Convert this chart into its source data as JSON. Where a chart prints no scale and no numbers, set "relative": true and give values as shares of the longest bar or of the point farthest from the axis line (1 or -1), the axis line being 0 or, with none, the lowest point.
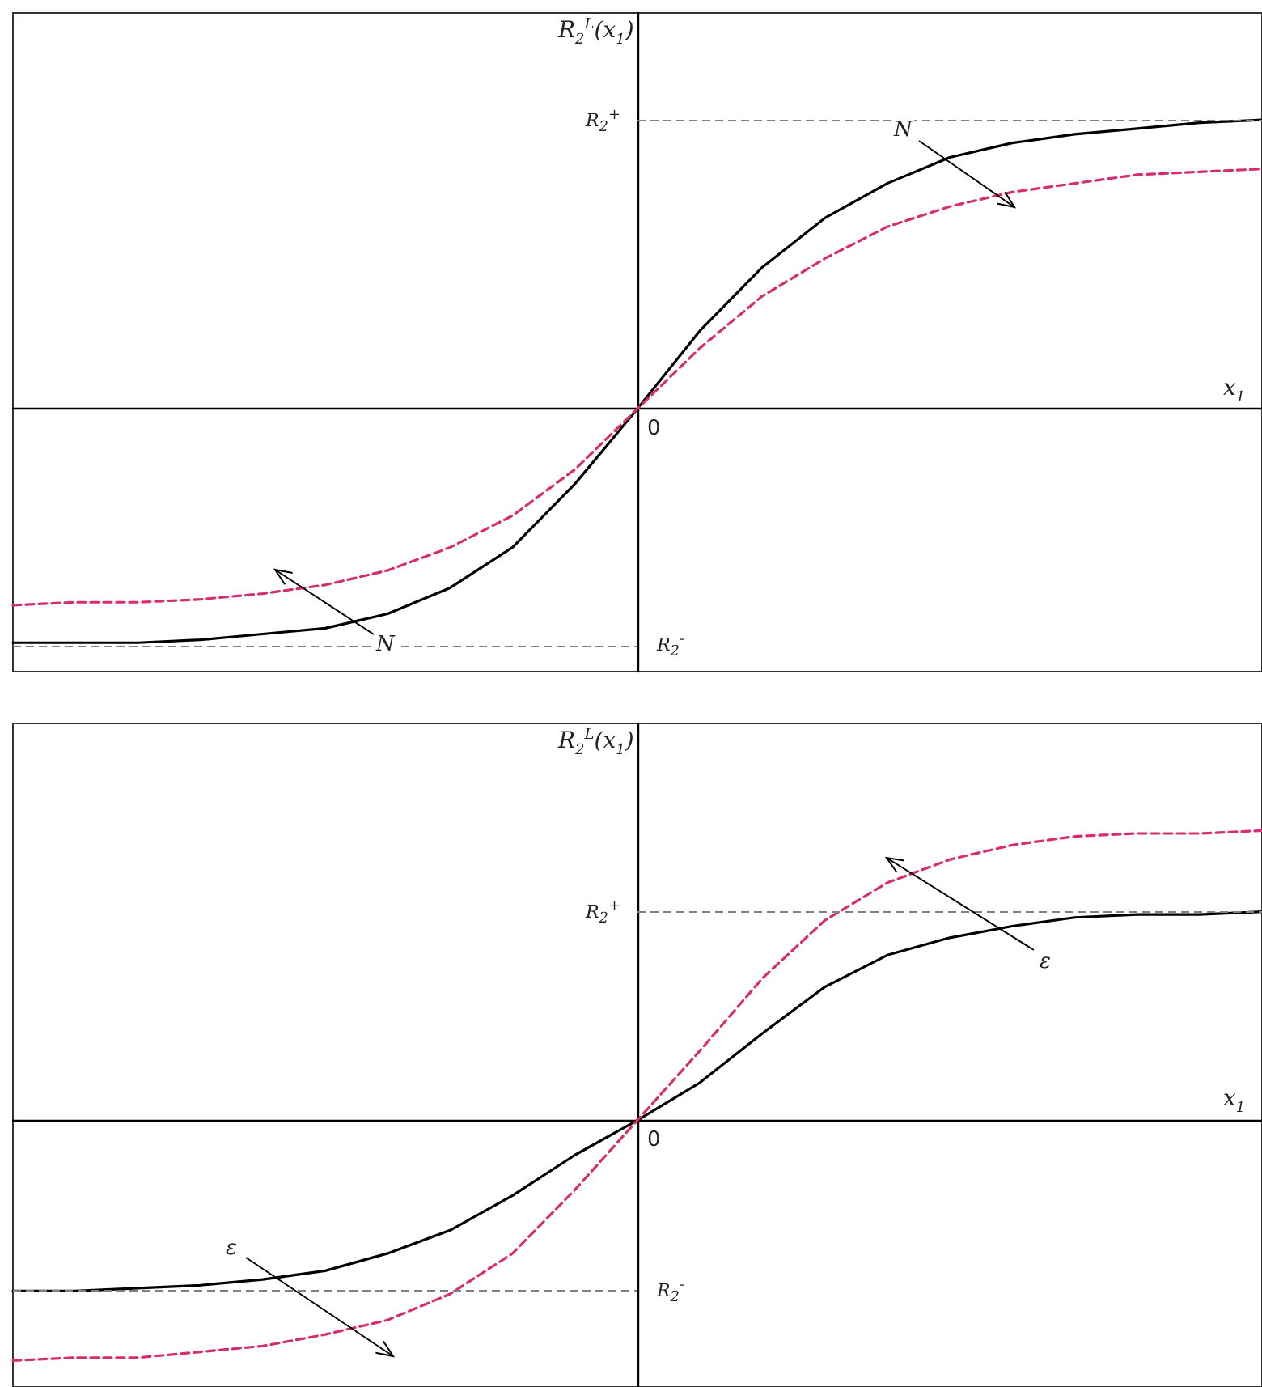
{
  "chart_data": [
    {
      "type": "line",
      "relative": true,
      "tick_labels": false,
      "xlabel": "x$_{1}$",
      "ylabel": "R$_{2}$$^{L}$(x$_{1}$)",
      "categories": [
        null,
        null,
        null,
        null,
        null,
        null,
        null,
        null,
        null,
        null,
        null,
        null,
        null,
        null,
        null,
        null,
        null,
        null,
        null,
        null,
        null
      ],
      "series": [
        {
          "color": "#000000",
          "line_style": "solid",
          "values": [
            -0.81,
            -0.81,
            -0.81,
            -0.8,
            -0.78,
            -0.76,
            -0.71,
            -0.62,
            -0.48,
            -0.26,
            0,
            0.27,
            0.49,
            0.66,
            0.78,
            0.87,
            0.92,
            0.95,
            0.97,
            0.99,
            1.0
          ]
        },
        {
          "color": "#d62d6e",
          "line_style": "dashed",
          "values": [
            -0.68,
            -0.67,
            -0.67,
            -0.66,
            -0.64,
            -0.61,
            -0.56,
            -0.48,
            -0.37,
            -0.21,
            0,
            0.21,
            0.39,
            0.52,
            0.63,
            0.7,
            0.75,
            0.78,
            0.81,
            0.82,
            0.83
          ]
        }
      ],
      "ref_lines": [
        {
          "axis": "y",
          "value": 1.0,
          "label": "R$_{2}$$^{+}$",
          "color": "#808080",
          "line_style": "dashed"
        },
        {
          "axis": "y",
          "value": -0.82,
          "label": "R$_{2}$$^{-}$",
          "color": "#808080",
          "line_style": "dashed"
        }
      ],
      "annotations": [
        "0",
        "N",
        "N"
      ]
    },
    {
      "type": "line",
      "relative": true,
      "tick_labels": false,
      "xlabel": "x$_{1}$",
      "ylabel": "R$_{2}$$^{L}$(x$_{1}$)",
      "categories": [
        null,
        null,
        null,
        null,
        null,
        null,
        null,
        null,
        null,
        null,
        null,
        null,
        null,
        null,
        null,
        null,
        null,
        null,
        null,
        null,
        null
      ],
      "series": [
        {
          "color": "#000000",
          "line_style": "solid",
          "values": [
            -0.59,
            -0.59,
            -0.58,
            -0.57,
            -0.55,
            -0.52,
            -0.46,
            -0.38,
            -0.26,
            -0.12,
            0,
            0.13,
            0.3,
            0.46,
            0.57,
            0.63,
            0.67,
            0.7,
            0.71,
            0.71,
            0.72
          ]
        },
        {
          "color": "#d62d6e",
          "line_style": "dashed",
          "values": [
            -0.83,
            -0.82,
            -0.82,
            -0.8,
            -0.78,
            -0.74,
            -0.69,
            -0.6,
            -0.46,
            -0.24,
            0,
            0.24,
            0.49,
            0.69,
            0.82,
            0.9,
            0.95,
            0.98,
            0.99,
            0.99,
            1.0
          ]
        }
      ],
      "ref_lines": [
        {
          "axis": "y",
          "value": 0.72,
          "label": "R$_{2}$$^{+}$",
          "color": "#808080",
          "line_style": "dashed"
        },
        {
          "axis": "y",
          "value": -0.59,
          "label": "R$_{2}$$^{-}$",
          "color": "#808080",
          "line_style": "dashed"
        }
      ],
      "annotations": [
        "0",
        "ε",
        "ε"
      ]
    }
  ]
}
